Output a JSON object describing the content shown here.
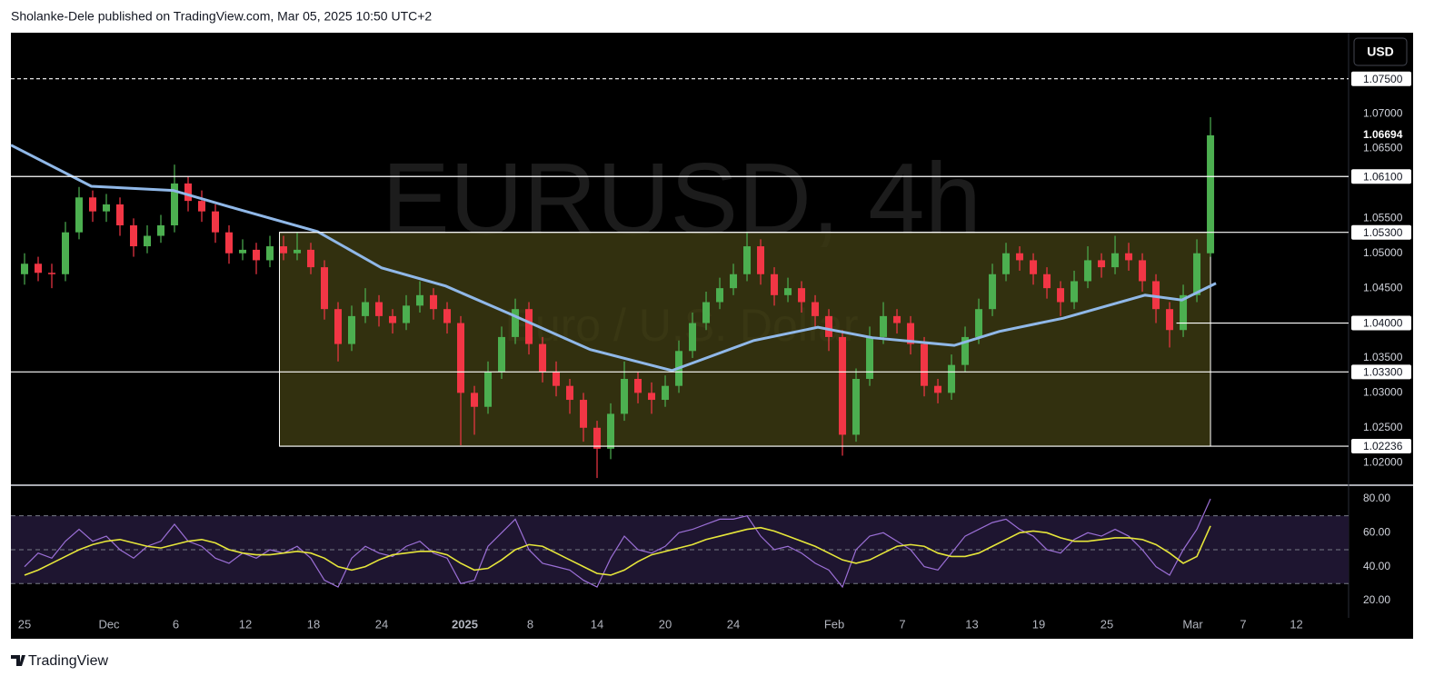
{
  "header": "Sholanke-Dele published on TradingView.com, Mar 05, 2025 10:50 UTC+2",
  "footer": "TradingView",
  "chart_data": {
    "type": "candlestick",
    "watermark": "EURUSD, 4h",
    "description": "Euro / U.S. Dollar",
    "currency": "USD",
    "xlim": [
      -1,
      97.13
    ],
    "xticks": [
      {
        "value": 0,
        "label": "25"
      },
      {
        "value": 6.2,
        "label": "Dec"
      },
      {
        "value": 11.1,
        "label": "6"
      },
      {
        "value": 16.2,
        "label": "12"
      },
      {
        "value": 21.2,
        "label": "18"
      },
      {
        "value": 26.2,
        "label": "24"
      },
      {
        "value": 32.3,
        "label": "2025"
      },
      {
        "value": 37.1,
        "label": "8"
      },
      {
        "value": 42,
        "label": "14"
      },
      {
        "value": 47,
        "label": "20"
      },
      {
        "value": 52,
        "label": "24"
      },
      {
        "value": 59.4,
        "label": "Feb"
      },
      {
        "value": 64.4,
        "label": "7"
      },
      {
        "value": 69.5,
        "label": "13"
      },
      {
        "value": 74.4,
        "label": "19"
      },
      {
        "value": 79.4,
        "label": "25"
      },
      {
        "value": 85.7,
        "label": "Mar"
      },
      {
        "value": 89.4,
        "label": "7"
      },
      {
        "value": 93.3,
        "label": "12"
      }
    ],
    "ylim": [
      1.0169,
      1.0816
    ],
    "yticks": [
      {
        "value": 1.02,
        "label": "1.02000"
      },
      {
        "value": 1.025,
        "label": "1.02500"
      },
      {
        "value": 1.03,
        "label": "1.03000"
      },
      {
        "value": 1.035,
        "label": "1.03500"
      },
      {
        "value": 1.045,
        "label": "1.04500"
      },
      {
        "value": 1.05,
        "label": "1.05000"
      },
      {
        "value": 1.055,
        "label": "1.05500"
      },
      {
        "value": 1.065,
        "label": "1.06500"
      },
      {
        "value": 1.07,
        "label": "1.07000"
      }
    ],
    "up_color": "#4caf50",
    "down_color": "#f23645",
    "x": [
      0,
      1,
      2,
      3,
      4,
      5,
      6,
      7,
      8,
      9,
      10,
      11,
      12,
      13,
      14,
      15,
      16,
      17,
      18,
      19,
      20,
      21,
      22,
      23,
      24,
      25,
      26,
      27,
      28,
      29,
      30,
      31,
      32,
      33,
      34,
      35,
      36,
      37,
      38,
      39,
      40,
      41,
      42,
      43,
      44,
      45,
      46,
      47,
      48,
      49,
      50,
      51,
      52,
      53,
      54,
      55,
      56,
      57,
      58,
      59,
      60,
      61,
      62,
      63,
      64,
      65,
      66,
      67,
      68,
      69,
      70,
      71,
      72,
      73,
      74,
      75,
      76,
      77,
      78,
      79,
      80,
      81,
      82,
      83,
      84,
      85,
      86,
      87
    ],
    "open": [
      1.047,
      1.0485,
      1.0472,
      1.047,
      1.053,
      1.058,
      1.056,
      1.057,
      1.054,
      1.051,
      1.0525,
      1.054,
      1.06,
      1.0575,
      1.056,
      1.053,
      1.05,
      1.0505,
      1.049,
      1.051,
      1.05,
      1.0505,
      1.048,
      1.042,
      1.037,
      1.041,
      1.043,
      1.041,
      1.04,
      1.0425,
      1.044,
      1.042,
      1.04,
      1.03,
      1.028,
      1.033,
      1.038,
      1.042,
      1.037,
      1.033,
      1.031,
      1.029,
      1.025,
      1.022,
      1.027,
      1.032,
      1.03,
      1.029,
      1.031,
      1.036,
      1.04,
      1.043,
      1.045,
      1.047,
      1.051,
      1.047,
      1.044,
      1.045,
      1.043,
      1.041,
      1.038,
      1.024,
      1.032,
      1.038,
      1.041,
      1.04,
      1.037,
      1.031,
      1.03,
      1.034,
      1.038,
      1.042,
      1.047,
      1.05,
      1.049,
      1.047,
      1.045,
      1.043,
      1.046,
      1.049,
      1.048,
      1.05,
      1.049,
      1.046,
      1.042,
      1.039,
      1.044,
      1.05
    ],
    "high": [
      1.05,
      1.0495,
      1.0485,
      1.0545,
      1.0595,
      1.059,
      1.0585,
      1.058,
      1.055,
      1.054,
      1.0555,
      1.0627,
      1.061,
      1.059,
      1.057,
      1.054,
      1.052,
      1.0515,
      1.0525,
      1.0525,
      1.053,
      1.0515,
      1.049,
      1.043,
      1.0425,
      1.045,
      1.044,
      1.042,
      1.044,
      1.046,
      1.045,
      1.043,
      1.041,
      1.031,
      1.0345,
      1.0395,
      1.0435,
      1.043,
      1.038,
      1.0345,
      1.032,
      1.03,
      1.026,
      1.0285,
      1.0345,
      1.033,
      1.0315,
      1.0325,
      1.0375,
      1.0415,
      1.0445,
      1.0465,
      1.0485,
      1.053,
      1.052,
      1.048,
      1.0465,
      1.046,
      1.044,
      1.042,
      1.039,
      1.0335,
      1.0395,
      1.043,
      1.042,
      1.041,
      1.038,
      1.032,
      1.0355,
      1.0395,
      1.0435,
      1.0485,
      1.0515,
      1.051,
      1.05,
      1.048,
      1.046,
      1.0475,
      1.051,
      1.05,
      1.0525,
      1.0515,
      1.05,
      1.047,
      1.043,
      1.0455,
      1.052,
      1.0695
    ],
    "low": [
      1.0455,
      1.046,
      1.045,
      1.046,
      1.052,
      1.0545,
      1.0545,
      1.0525,
      1.0495,
      1.05,
      1.0515,
      1.053,
      1.056,
      1.0545,
      1.0515,
      1.0485,
      1.049,
      1.047,
      1.048,
      1.049,
      1.049,
      1.047,
      1.0405,
      1.0345,
      1.036,
      1.04,
      1.0395,
      1.0385,
      1.039,
      1.0415,
      1.0405,
      1.0385,
      1.0225,
      1.024,
      1.027,
      1.032,
      1.037,
      1.0355,
      1.0315,
      1.0295,
      1.027,
      1.023,
      1.0178,
      1.0205,
      1.026,
      1.0285,
      1.027,
      1.028,
      1.03,
      1.035,
      1.039,
      1.042,
      1.044,
      1.046,
      1.0455,
      1.0425,
      1.043,
      1.0415,
      1.0395,
      1.036,
      1.021,
      1.023,
      1.031,
      1.037,
      1.0385,
      1.0355,
      1.0295,
      1.0285,
      1.029,
      1.033,
      1.037,
      1.041,
      1.046,
      1.0475,
      1.0455,
      1.0435,
      1.041,
      1.042,
      1.045,
      1.0465,
      1.047,
      1.0475,
      1.0445,
      1.04,
      1.0365,
      1.038,
      1.043,
      1.0495
    ],
    "close": [
      1.0485,
      1.0472,
      1.047,
      1.053,
      1.058,
      1.056,
      1.057,
      1.054,
      1.051,
      1.0525,
      1.054,
      1.06,
      1.0575,
      1.056,
      1.053,
      1.05,
      1.0505,
      1.049,
      1.051,
      1.05,
      1.0505,
      1.048,
      1.042,
      1.037,
      1.041,
      1.043,
      1.041,
      1.04,
      1.0425,
      1.044,
      1.042,
      1.04,
      1.03,
      1.028,
      1.033,
      1.038,
      1.042,
      1.037,
      1.033,
      1.031,
      1.029,
      1.025,
      1.022,
      1.027,
      1.032,
      1.03,
      1.029,
      1.031,
      1.036,
      1.04,
      1.043,
      1.045,
      1.047,
      1.051,
      1.047,
      1.044,
      1.045,
      1.043,
      1.041,
      1.038,
      1.024,
      1.032,
      1.038,
      1.041,
      1.04,
      1.037,
      1.031,
      1.03,
      1.034,
      1.038,
      1.042,
      1.047,
      1.05,
      1.049,
      1.047,
      1.045,
      1.043,
      1.046,
      1.049,
      1.048,
      1.05,
      1.049,
      1.046,
      1.042,
      1.039,
      1.044,
      1.05,
      1.0669
    ],
    "ma": {
      "color": "#90b8e8",
      "x": [
        -1,
        4.9,
        10.9,
        15.5,
        21.5,
        26.2,
        30.9,
        35.5,
        41.5,
        47.5,
        53.5,
        58.2,
        62.2,
        68.2,
        71.5,
        76.2,
        82.2,
        84.9,
        87.4
      ],
      "values": [
        1.0655,
        1.0596,
        1.059,
        1.0564,
        1.0531,
        1.0479,
        1.0453,
        1.0414,
        1.0362,
        1.0332,
        1.0375,
        1.0394,
        1.0379,
        1.0368,
        1.0388,
        1.0407,
        1.044,
        1.0433,
        1.0457
      ]
    },
    "zone": {
      "x_from": 18.7,
      "x_to": 87,
      "top": 1.053,
      "bottom": 1.02236,
      "fill": "#3b3812"
    },
    "levels": [
      {
        "value": 1.075,
        "label": "1.07500",
        "x_from": -1,
        "dashed": true
      },
      {
        "value": 1.061,
        "label": "1.06100",
        "x_from": -1,
        "dashed": false
      },
      {
        "value": 1.053,
        "label": "1.05300",
        "x_from": 18.7,
        "dashed": false
      },
      {
        "value": 1.04,
        "label": "1.04000",
        "x_from": 84.5,
        "dashed": false
      },
      {
        "value": 1.033,
        "label": "1.03300",
        "x_from": -1,
        "dashed": false
      },
      {
        "value": 1.02236,
        "label": "1.02236",
        "x_from": 18.7,
        "dashed": false
      }
    ],
    "last_price": {
      "value": 1.06694,
      "label": "1.06694"
    },
    "rsi": {
      "ylim": [
        9.8,
        87.5
      ],
      "yticks": [
        {
          "value": 20,
          "label": "20.00"
        },
        {
          "value": 40,
          "label": "40.00"
        },
        {
          "value": 60,
          "label": "60.00"
        },
        {
          "value": 80,
          "label": "80.00"
        }
      ],
      "levels": [
        70,
        50,
        30
      ],
      "band_color": "#1e1530",
      "series": [
        {
          "color": "#9b6fd6",
          "values": [
            40,
            48,
            45,
            55,
            62,
            55,
            58,
            50,
            45,
            52,
            55,
            65,
            55,
            52,
            45,
            42,
            48,
            45,
            50,
            48,
            52,
            45,
            32,
            28,
            45,
            52,
            48,
            46,
            52,
            55,
            48,
            45,
            30,
            32,
            52,
            60,
            68,
            50,
            42,
            40,
            38,
            32,
            28,
            45,
            58,
            50,
            48,
            52,
            60,
            62,
            65,
            68,
            68,
            70,
            58,
            50,
            52,
            48,
            42,
            38,
            28,
            50,
            58,
            60,
            55,
            50,
            40,
            38,
            48,
            58,
            62,
            66,
            68,
            62,
            58,
            50,
            48,
            56,
            60,
            58,
            62,
            58,
            50,
            40,
            35,
            50,
            62,
            80
          ]
        },
        {
          "color": "#e6e63a",
          "values": [
            35,
            38,
            42,
            46,
            50,
            53,
            55,
            56,
            54,
            52,
            51,
            53,
            55,
            56,
            54,
            50,
            48,
            47,
            47,
            48,
            49,
            48,
            45,
            40,
            38,
            40,
            44,
            47,
            48,
            49,
            49,
            47,
            42,
            38,
            39,
            44,
            50,
            53,
            52,
            48,
            44,
            40,
            36,
            35,
            38,
            43,
            47,
            49,
            51,
            53,
            56,
            58,
            60,
            62,
            63,
            61,
            58,
            55,
            52,
            48,
            44,
            42,
            44,
            48,
            52,
            53,
            52,
            48,
            46,
            46,
            48,
            52,
            56,
            60,
            61,
            60,
            57,
            55,
            55,
            56,
            57,
            57,
            56,
            53,
            48,
            42,
            46,
            64
          ]
        }
      ]
    }
  }
}
